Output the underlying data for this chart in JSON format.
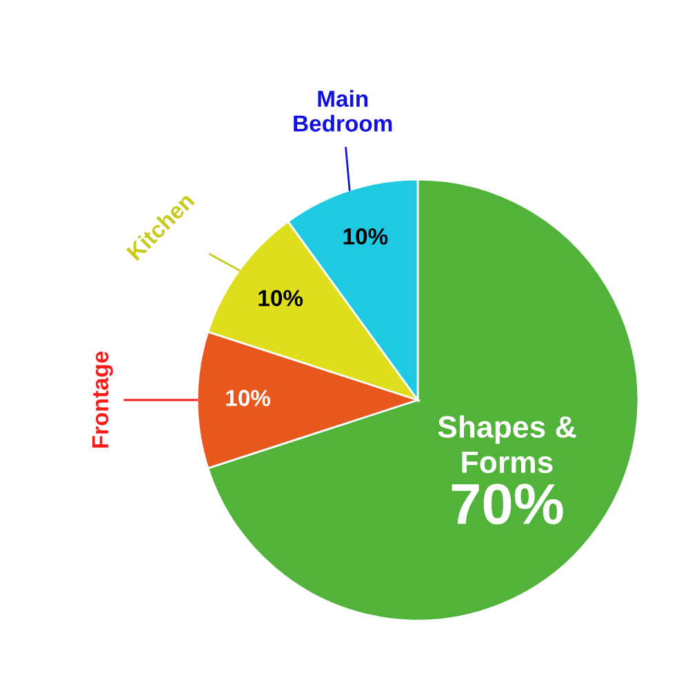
{
  "chart_data": {
    "type": "pie",
    "categories": [
      "Shapes & Forms",
      "Frontage",
      "Kitchen",
      "Main Bedroom"
    ],
    "values": [
      70,
      10,
      10,
      10
    ],
    "colors": [
      "#52b33a",
      "#e8581e",
      "#dede1c",
      "#1fc9e2"
    ],
    "value_labels": [
      "70%",
      "10%",
      "10%",
      "10%"
    ],
    "legend": false
  }
}
